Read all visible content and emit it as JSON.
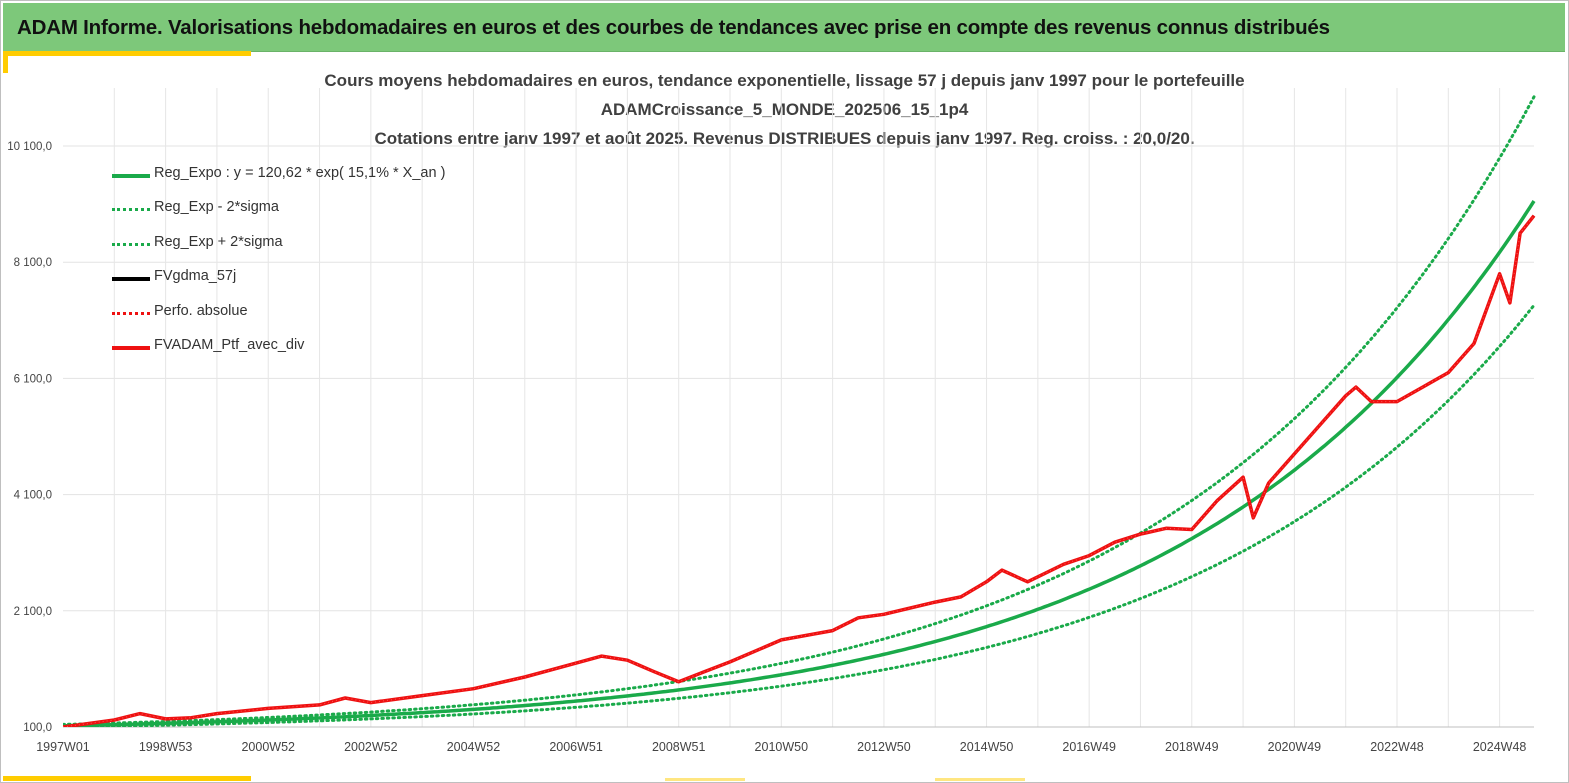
{
  "banner": {
    "title": "ADAM Informe. Valorisations hebdomadaires en euros et des courbes de tendances avec prise en compte des revenus connus distribués"
  },
  "colors": {
    "banner_bg": "#7dc87a",
    "accent": "#ffcc00",
    "trend": "#1aaa4a",
    "fvgdma": "#000000",
    "portfolio": "#ee1111"
  },
  "chart_data": {
    "type": "line",
    "title_lines": [
      "Cours moyens hebdomadaires  en euros, tendance exponentielle, lissage 57 j depuis janv 1997 pour le portefeuille",
      "ADAMCroissance_5_MONDE_202506_15_1p4",
      "Cotations  entre janv 1997 et août 2025. Revenus DISTRIBUES depuis janv 1997. Reg. croiss. : 20,0/20."
    ],
    "y_ticks": [
      "100,0",
      "2 100,0",
      "4 100,0",
      "6 100,0",
      "8 100,0",
      "10 100,0"
    ],
    "y_tick_values": [
      100,
      2100,
      4100,
      6100,
      8100,
      10100
    ],
    "x_ticks": [
      "1997W01",
      "1998W53",
      "2000W52",
      "2002W52",
      "2004W52",
      "2006W51",
      "2008W51",
      "2010W50",
      "2012W50",
      "2014W50",
      "2016W49",
      "2018W49",
      "2020W49",
      "2022W48",
      "2024W48"
    ],
    "x_tick_years": [
      1997.0,
      1999.0,
      2001.0,
      2003.0,
      2005.0,
      2007.0,
      2009.0,
      2011.0,
      2013.0,
      2015.0,
      2017.0,
      2019.0,
      2021.0,
      2023.0,
      2025.0
    ],
    "xlim": [
      1997.0,
      2025.67
    ],
    "ylim": [
      100,
      10900
    ],
    "grid": true,
    "legend_position": "top-left",
    "trend": {
      "a": 120.62,
      "rate": 0.151
    },
    "sigma_factor": 0.196,
    "series": [
      {
        "name": "Reg_Expo : y = 120,62 * exp( 15,1% *  X_an )",
        "style": "solid-green"
      },
      {
        "name": "Reg_Exp - 2*sigma",
        "style": "dotted-green"
      },
      {
        "name": "Reg_Exp + 2*sigma",
        "style": "dotted-green"
      },
      {
        "name": "FVgdma_57j",
        "style": "solid-black"
      },
      {
        "name": "Perfo. absolue",
        "style": "dotted-red"
      },
      {
        "name": "FVADAM_Ptf_avec_div",
        "style": "solid-red"
      }
    ],
    "portfolio_points": [
      [
        1997.0,
        100
      ],
      [
        1998.0,
        220
      ],
      [
        1998.5,
        330
      ],
      [
        1999.0,
        240
      ],
      [
        1999.5,
        260
      ],
      [
        2000.0,
        330
      ],
      [
        2001.0,
        420
      ],
      [
        2002.0,
        480
      ],
      [
        2002.5,
        600
      ],
      [
        2003.0,
        520
      ],
      [
        2004.0,
        640
      ],
      [
        2005.0,
        760
      ],
      [
        2006.0,
        960
      ],
      [
        2006.5,
        1080
      ],
      [
        2007.0,
        1200
      ],
      [
        2007.5,
        1320
      ],
      [
        2008.0,
        1250
      ],
      [
        2008.5,
        1060
      ],
      [
        2009.0,
        880
      ],
      [
        2009.5,
        1050
      ],
      [
        2010.0,
        1220
      ],
      [
        2011.0,
        1600
      ],
      [
        2012.0,
        1760
      ],
      [
        2012.5,
        1980
      ],
      [
        2013.0,
        2040
      ],
      [
        2014.0,
        2250
      ],
      [
        2014.5,
        2340
      ],
      [
        2015.0,
        2600
      ],
      [
        2015.3,
        2800
      ],
      [
        2015.8,
        2600
      ],
      [
        2016.5,
        2900
      ],
      [
        2017.0,
        3050
      ],
      [
        2017.5,
        3280
      ],
      [
        2018.0,
        3420
      ],
      [
        2018.5,
        3520
      ],
      [
        2019.0,
        3500
      ],
      [
        2019.5,
        4000
      ],
      [
        2020.0,
        4400
      ],
      [
        2020.2,
        3700
      ],
      [
        2020.5,
        4300
      ],
      [
        2021.0,
        4800
      ],
      [
        2021.5,
        5300
      ],
      [
        2022.0,
        5800
      ],
      [
        2022.2,
        5950
      ],
      [
        2022.5,
        5700
      ],
      [
        2023.0,
        5700
      ],
      [
        2023.5,
        5950
      ],
      [
        2024.0,
        6200
      ],
      [
        2024.5,
        6700
      ],
      [
        2025.0,
        7900
      ],
      [
        2025.2,
        7400
      ],
      [
        2025.4,
        8600
      ],
      [
        2025.67,
        8900
      ]
    ]
  }
}
